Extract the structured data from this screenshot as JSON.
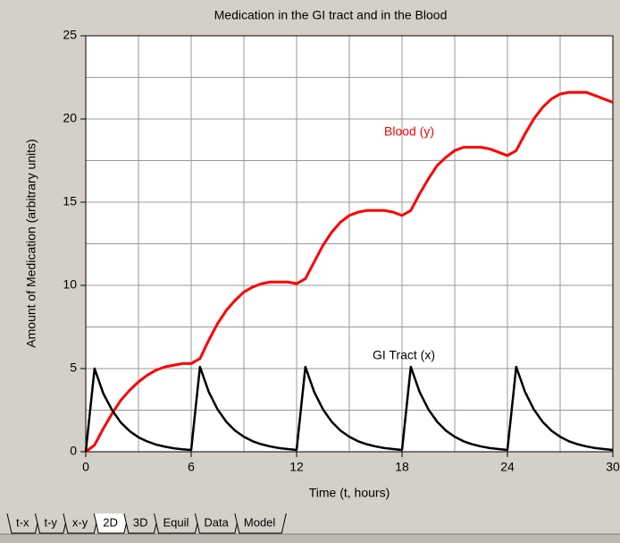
{
  "chart_data": {
    "type": "line",
    "title": "Medication in the GI tract and in the Blood",
    "xlabel": "Time (t, hours)",
    "ylabel": "Amount of Medication (arbitrary units)",
    "x": [
      0,
      0.5,
      1,
      1.5,
      2,
      2.5,
      3,
      3.5,
      4,
      4.5,
      5,
      5.5,
      6,
      6.5,
      7,
      7.5,
      8,
      8.5,
      9,
      9.5,
      10,
      10.5,
      11,
      11.5,
      12,
      12.5,
      13,
      13.5,
      14,
      14.5,
      15,
      15.5,
      16,
      16.5,
      17,
      17.5,
      18,
      18.5,
      19,
      19.5,
      20,
      20.5,
      21,
      21.5,
      22,
      22.5,
      23,
      23.5,
      24,
      24.5,
      25,
      25.5,
      26,
      26.5,
      27,
      27.5,
      28,
      28.5,
      29,
      29.5,
      30
    ],
    "series": [
      {
        "name": "Blood (y)",
        "color": "#ff0000",
        "values": [
          0,
          0.4,
          1.4,
          2.3,
          3.1,
          3.7,
          4.2,
          4.6,
          4.9,
          5.1,
          5.2,
          5.3,
          5.3,
          5.6,
          6.7,
          7.7,
          8.5,
          9.1,
          9.6,
          9.9,
          10.1,
          10.2,
          10.2,
          10.2,
          10.1,
          10.4,
          11.4,
          12.4,
          13.2,
          13.8,
          14.2,
          14.4,
          14.5,
          14.5,
          14.5,
          14.4,
          14.2,
          14.5,
          15.5,
          16.4,
          17.2,
          17.7,
          18.1,
          18.3,
          18.3,
          18.3,
          18.2,
          18.0,
          17.8,
          18.1,
          19.1,
          20.0,
          20.7,
          21.2,
          21.5,
          21.6,
          21.6,
          21.6,
          21.4,
          21.2,
          21.0
        ]
      },
      {
        "name": "GI Tract (x)",
        "color": "#000000",
        "values": [
          0,
          5.0,
          3.5,
          2.5,
          1.75,
          1.24,
          0.87,
          0.62,
          0.43,
          0.31,
          0.21,
          0.15,
          0.11,
          5.1,
          3.6,
          2.55,
          1.8,
          1.27,
          0.9,
          0.63,
          0.45,
          0.32,
          0.22,
          0.16,
          0.11,
          5.1,
          3.6,
          2.55,
          1.8,
          1.27,
          0.9,
          0.63,
          0.45,
          0.32,
          0.22,
          0.16,
          0.11,
          5.1,
          3.6,
          2.55,
          1.8,
          1.27,
          0.9,
          0.63,
          0.45,
          0.32,
          0.22,
          0.16,
          0.11,
          5.1,
          3.6,
          2.55,
          1.8,
          1.27,
          0.9,
          0.63,
          0.45,
          0.32,
          0.22,
          0.16,
          0.11
        ]
      }
    ],
    "xlim": [
      0,
      30
    ],
    "ylim": [
      0,
      25
    ],
    "xticks": [
      0,
      6,
      12,
      18,
      24,
      30
    ],
    "yticks": [
      0,
      5,
      10,
      15,
      20,
      25
    ],
    "xgrid": [
      0,
      3,
      6,
      9,
      12,
      15,
      18,
      21,
      24,
      27,
      30
    ],
    "ygrid": [
      0,
      2.5,
      5,
      7.5,
      10,
      12.5,
      15,
      17.5,
      20,
      22.5,
      25
    ],
    "grid": true
  },
  "tabs": [
    "t-x",
    "t-y",
    "x-y",
    "2D",
    "3D",
    "Equil",
    "Data",
    "Model"
  ],
  "active_tab": 3
}
